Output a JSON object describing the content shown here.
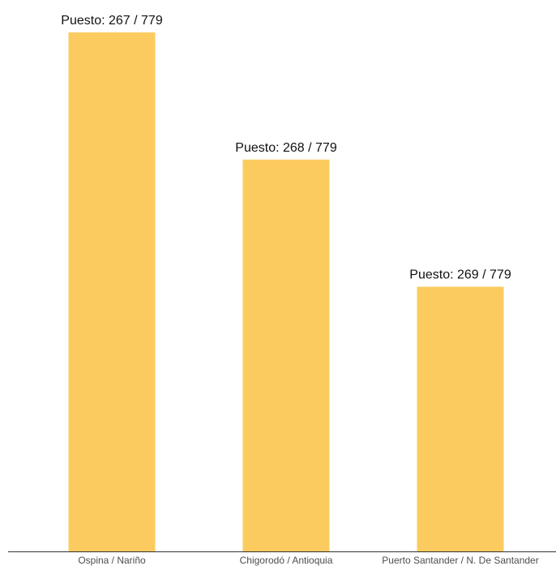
{
  "chart_data": {
    "type": "bar",
    "categories": [
      "Ospina / Nariño",
      "Chigorodó / Antioquia",
      "Puerto Santander / N. De Santander"
    ],
    "values": [
      1.0,
      0.755,
      0.51
    ],
    "data_labels": [
      "Puesto: 267 / 779",
      "Puesto: 268 / 779",
      "Puesto: 269 / 779"
    ],
    "title": "",
    "xlabel": "",
    "ylabel": "",
    "y_axis_shown": false,
    "grid": false,
    "legend": "none",
    "bar_color": "#FCCB5F",
    "axis_color": "#333333"
  }
}
